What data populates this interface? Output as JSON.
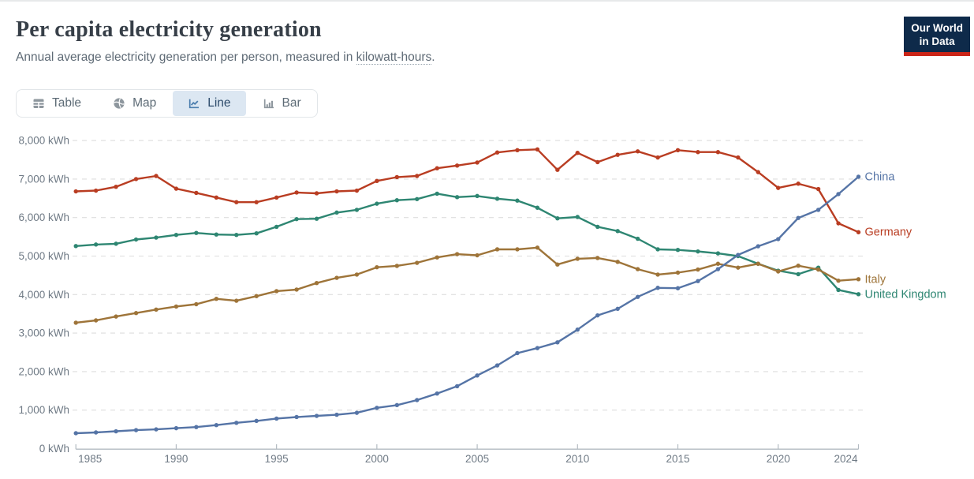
{
  "header": {
    "title": "Per capita electricity generation",
    "subtitle_prefix": "Annual average electricity generation per person, measured in ",
    "subtitle_link": "kilowatt-hours",
    "subtitle_suffix": "."
  },
  "logo": {
    "line1": "Our World",
    "line2": "in Data",
    "bg_color": "#0e2a4a",
    "accent_color": "#cb2518"
  },
  "toolbar": {
    "tabs": [
      {
        "label": "Table",
        "icon": "table-icon",
        "active": false
      },
      {
        "label": "Map",
        "icon": "globe-icon",
        "active": false
      },
      {
        "label": "Line",
        "icon": "line-chart-icon",
        "active": true
      },
      {
        "label": "Bar",
        "icon": "bar-chart-icon",
        "active": false
      }
    ],
    "active_bg": "#dce7f2"
  },
  "chart_data": {
    "type": "line",
    "title": "Per capita electricity generation",
    "subtitle": "Annual average electricity generation per person, measured in kilowatt-hours.",
    "x": [
      1985,
      1986,
      1987,
      1988,
      1989,
      1990,
      1991,
      1992,
      1993,
      1994,
      1995,
      1996,
      1997,
      1998,
      1999,
      2000,
      2001,
      2002,
      2003,
      2004,
      2005,
      2006,
      2007,
      2008,
      2009,
      2010,
      2011,
      2012,
      2013,
      2014,
      2015,
      2016,
      2017,
      2018,
      2019,
      2020,
      2021,
      2022,
      2023,
      2024
    ],
    "x_ticks": [
      1985,
      1990,
      1995,
      2000,
      2005,
      2010,
      2015,
      2020,
      2024
    ],
    "x_tick_offsets": [
      18,
      0,
      0,
      0,
      0,
      0,
      0,
      0,
      -16
    ],
    "ylim": [
      0,
      8000
    ],
    "y_ticks": [
      0,
      1000,
      2000,
      3000,
      4000,
      5000,
      6000,
      7000,
      8000
    ],
    "y_tick_labels": [
      "0 kWh",
      "1,000 kWh",
      "2,000 kWh",
      "3,000 kWh",
      "4,000 kWh",
      "5,000 kWh",
      "6,000 kWh",
      "7,000 kWh",
      "8,000 kWh"
    ],
    "y_unit": "kWh",
    "grid": true,
    "legend_position": "right-of-line-ends",
    "series": [
      {
        "name": "Germany",
        "color": "#b93d22",
        "values": [
          6680,
          6700,
          6800,
          7000,
          7080,
          6750,
          6640,
          6520,
          6400,
          6400,
          6520,
          6650,
          6630,
          6680,
          6700,
          6950,
          7050,
          7080,
          7280,
          7350,
          7430,
          7690,
          7750,
          7770,
          7240,
          7680,
          7440,
          7630,
          7720,
          7560,
          7750,
          7700,
          7700,
          7560,
          7180,
          6770,
          6880,
          6740,
          5850,
          5620
        ]
      },
      {
        "name": "United Kingdom",
        "color": "#2e8672",
        "values": [
          5260,
          5300,
          5320,
          5430,
          5480,
          5550,
          5600,
          5560,
          5550,
          5590,
          5760,
          5960,
          5970,
          6130,
          6200,
          6360,
          6450,
          6480,
          6620,
          6530,
          6560,
          6490,
          6440,
          6255,
          5980,
          6015,
          5760,
          5650,
          5450,
          5175,
          5160,
          5120,
          5070,
          5000,
          4800,
          4620,
          4530,
          4700,
          4120,
          4010
        ]
      },
      {
        "name": "Italy",
        "color": "#9e7439",
        "values": [
          3270,
          3330,
          3430,
          3520,
          3610,
          3690,
          3750,
          3890,
          3840,
          3960,
          4090,
          4130,
          4300,
          4435,
          4520,
          4710,
          4745,
          4825,
          4965,
          5050,
          5020,
          5175,
          5175,
          5220,
          4780,
          4930,
          4950,
          4850,
          4660,
          4520,
          4570,
          4650,
          4800,
          4700,
          4800,
          4600,
          4750,
          4650,
          4360,
          4400
        ]
      },
      {
        "name": "China",
        "color": "#5574a6",
        "values": [
          400,
          420,
          450,
          480,
          500,
          530,
          560,
          610,
          670,
          720,
          780,
          820,
          850,
          880,
          930,
          1060,
          1130,
          1260,
          1430,
          1620,
          1900,
          2160,
          2480,
          2610,
          2760,
          3090,
          3460,
          3630,
          3940,
          4175,
          4165,
          4350,
          4660,
          5030,
          5255,
          5440,
          5990,
          6200,
          6610,
          7060
        ]
      }
    ],
    "axis_color": "#b3bbc2",
    "grid_color": "#dedede",
    "tick_label_color": "#6f7a85"
  }
}
